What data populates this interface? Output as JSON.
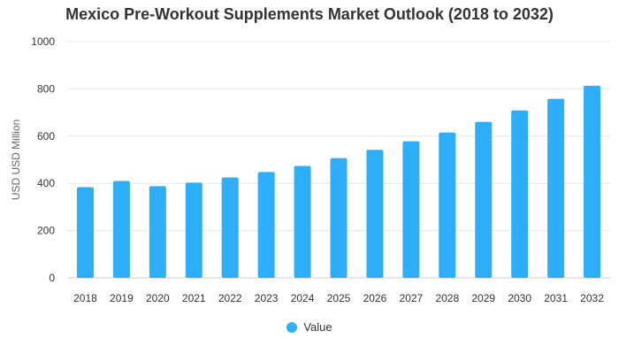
{
  "chart_data": {
    "type": "bar",
    "title": "Mexico Pre-Workout Supplements Market Outlook (2018 to 2032)",
    "xlabel": "",
    "ylabel": "USD USD Million",
    "ylim": [
      0,
      1000
    ],
    "yticks": [
      0,
      200,
      400,
      600,
      800,
      1000
    ],
    "grid": true,
    "legend": "bottom-center",
    "categories": [
      "2018",
      "2019",
      "2020",
      "2021",
      "2022",
      "2023",
      "2024",
      "2025",
      "2026",
      "2027",
      "2028",
      "2029",
      "2030",
      "2031",
      "2032"
    ],
    "series": [
      {
        "name": "Value",
        "color": "#2EAEF8",
        "values": [
          384,
          410,
          388,
          403,
          425,
          448,
          474,
          507,
          542,
          578,
          615,
          660,
          709,
          758,
          813
        ]
      }
    ]
  }
}
